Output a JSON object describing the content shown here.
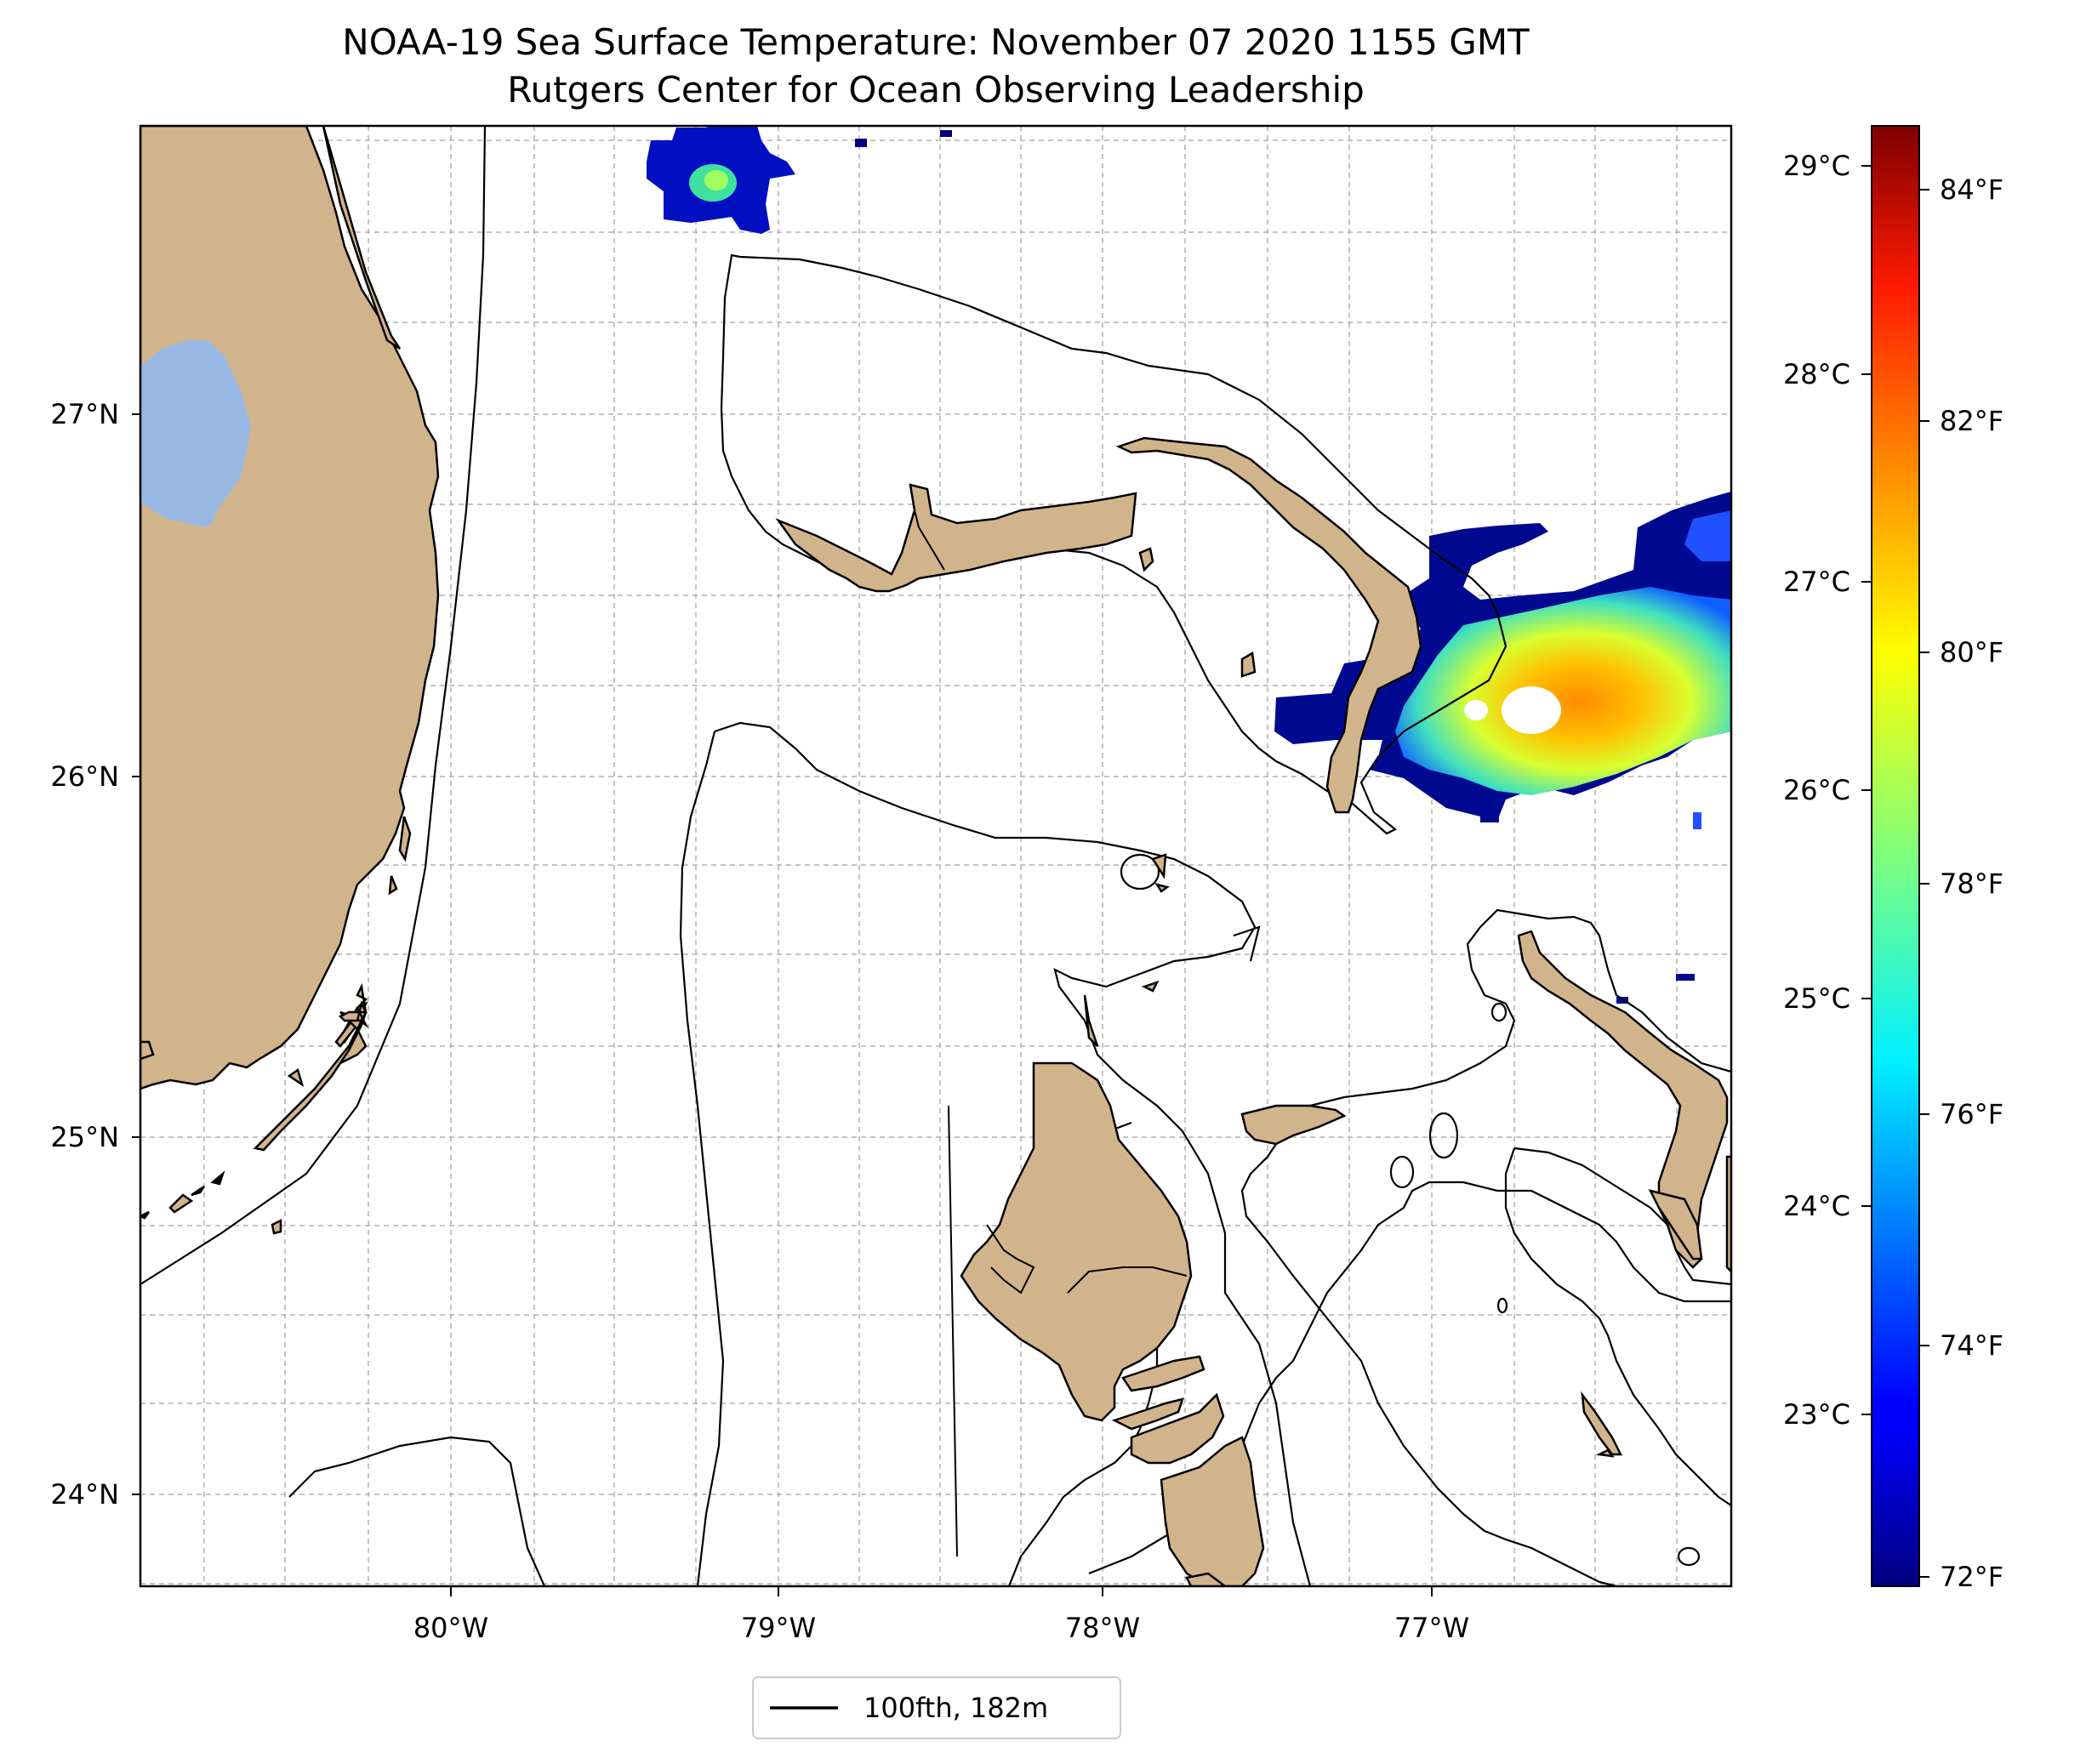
{
  "title": {
    "line1": "NOAA-19 Sea Surface Temperature: November 07 2020 1155 GMT",
    "line2": "Rutgers Center for Ocean Observing Leadership"
  },
  "axes": {
    "lat_labels": [
      "27°N",
      "26°N",
      "25°N",
      "24°N"
    ],
    "lon_labels": [
      "80°W",
      "79°W",
      "78°W",
      "77°W"
    ]
  },
  "colorbar": {
    "celsius_labels": [
      "29°C",
      "28°C",
      "27°C",
      "26°C",
      "25°C",
      "24°C",
      "23°C"
    ],
    "fahrenheit_labels": [
      "84°F",
      "82°F",
      "80°F",
      "78°F",
      "76°F",
      "74°F",
      "72°F"
    ],
    "colormap": "jet"
  },
  "legend": {
    "label": "100fth, 182m"
  },
  "colors": {
    "land": "#d2b48c",
    "lake": "#9ab8e4",
    "grid": "#b0b0b0"
  }
}
